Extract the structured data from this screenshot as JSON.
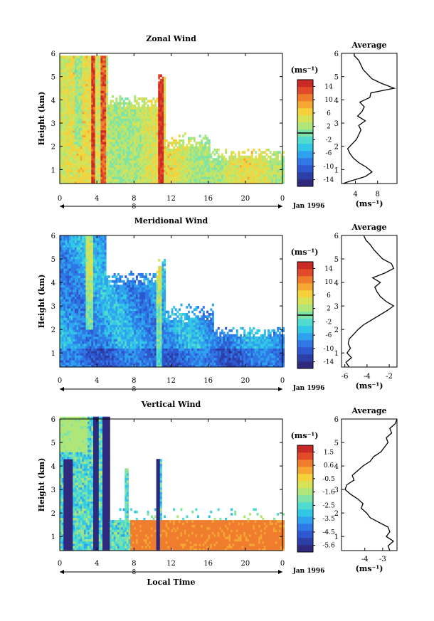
{
  "figure": {
    "xlabel": "Local Time",
    "date_label": "Jan 1996",
    "day_label": "8",
    "colorbar_unit": "(ms⁻¹)",
    "avg_unit": "(ms⁻¹)",
    "height_label": "Height (km)"
  },
  "chart_data": [
    {
      "type": "heatmap",
      "title": "Zonal Wind",
      "xlabel": "",
      "ylabel": "Height (km)",
      "xlim": [
        0,
        24
      ],
      "ylim": [
        0.4,
        6
      ],
      "xticks": [
        "0",
        "4",
        "8",
        "12",
        "16",
        "20",
        "0"
      ],
      "yticks": [
        "1",
        "2",
        "3",
        "4",
        "5",
        "6"
      ],
      "colorbar": {
        "min": -16,
        "max": 16,
        "ticks": [
          "14",
          "10",
          "6",
          "2",
          "-2",
          "-6",
          "-10",
          "-14"
        ],
        "contour": 0
      },
      "profile": {
        "title": "Average",
        "xlim": [
          1.5,
          11.5
        ],
        "xticks": [
          "4",
          "8"
        ],
        "xtick_values": [
          4,
          8
        ],
        "heights": [
          0.4,
          0.5,
          0.7,
          0.9,
          1.1,
          1.3,
          1.5,
          1.7,
          1.9,
          2.1,
          2.3,
          2.5,
          2.7,
          2.9,
          3.1,
          3.3,
          3.5,
          3.7,
          3.9,
          4.1,
          4.3,
          4.5,
          4.7,
          4.9,
          5.1,
          5.3,
          5.5,
          5.7,
          5.9,
          6.0
        ],
        "values": [
          1.8,
          3.0,
          5.8,
          7.0,
          6.0,
          4.6,
          3.6,
          3.0,
          2.6,
          3.4,
          4.2,
          4.6,
          5.0,
          4.6,
          5.8,
          4.4,
          5.2,
          5.6,
          4.8,
          6.6,
          6.8,
          11.0,
          8.8,
          7.0,
          6.2,
          5.4,
          5.0,
          4.6,
          3.8,
          3.8
        ]
      }
    },
    {
      "type": "heatmap",
      "title": "Meridional Wind",
      "xlabel": "",
      "ylabel": "Height (km)",
      "xlim": [
        0,
        24
      ],
      "ylim": [
        0.4,
        6
      ],
      "xticks": [
        "0",
        "4",
        "8",
        "12",
        "16",
        "20",
        "0"
      ],
      "yticks": [
        "1",
        "2",
        "3",
        "4",
        "5",
        "6"
      ],
      "colorbar": {
        "min": -16,
        "max": 16,
        "ticks": [
          "14",
          "10",
          "6",
          "2",
          "-2",
          "-6",
          "-10",
          "-14"
        ],
        "contour": 0
      },
      "profile": {
        "title": "Average",
        "xlim": [
          -6.3,
          -1.3
        ],
        "xticks": [
          "-6",
          "-4",
          "-2"
        ],
        "xtick_values": [
          -6,
          -4,
          -2
        ],
        "heights": [
          0.4,
          0.6,
          0.8,
          1.0,
          1.2,
          1.4,
          1.6,
          1.8,
          2.0,
          2.2,
          2.4,
          2.6,
          2.8,
          3.0,
          3.2,
          3.4,
          3.6,
          3.8,
          4.0,
          4.2,
          4.4,
          4.6,
          4.8,
          5.0,
          5.2,
          5.4,
          5.6,
          5.8,
          6.0
        ],
        "values": [
          -5.6,
          -5.9,
          -5.4,
          -5.8,
          -5.5,
          -5.7,
          -5.6,
          -5.2,
          -4.8,
          -4.3,
          -3.6,
          -2.9,
          -2.2,
          -1.6,
          -2.3,
          -2.8,
          -3.1,
          -3.3,
          -2.8,
          -3.5,
          -2.4,
          -1.6,
          -1.8,
          -2.6,
          -3.0,
          -3.4,
          -3.7,
          -4.1,
          -4.3
        ]
      }
    },
    {
      "type": "heatmap",
      "title": "Vertical Wind",
      "xlabel": "Local Time",
      "ylabel": "Height (km)",
      "xlim": [
        0,
        24
      ],
      "ylim": [
        0.4,
        6
      ],
      "xticks": [
        "0",
        "4",
        "8",
        "12",
        "16",
        "20",
        "0"
      ],
      "yticks": [
        "1",
        "2",
        "3",
        "4",
        "5",
        "6"
      ],
      "colorbar": {
        "min": -6.0,
        "max": 2.0,
        "ticks": [
          "1.5",
          "0.6",
          "-0.5",
          "-1.6",
          "-2.5",
          "-3.5",
          "-4.5",
          "-5.6"
        ]
      },
      "profile": {
        "title": "Average",
        "xlim": [
          -5.3,
          -2.2
        ],
        "xticks": [
          "-4",
          "-3"
        ],
        "xtick_values": [
          -4,
          -3
        ],
        "heights": [
          0.4,
          0.6,
          0.8,
          1.0,
          1.2,
          1.4,
          1.6,
          1.8,
          2.0,
          2.2,
          2.4,
          2.6,
          2.8,
          3.0,
          3.2,
          3.4,
          3.6,
          3.8,
          4.0,
          4.2,
          4.4,
          4.6,
          4.8,
          5.0,
          5.2,
          5.4,
          5.6,
          5.8,
          6.0
        ],
        "values": [
          -2.6,
          -2.7,
          -2.4,
          -2.8,
          -2.6,
          -2.7,
          -3.2,
          -3.7,
          -3.9,
          -4.2,
          -4.1,
          -4.4,
          -4.8,
          -5.1,
          -5.0,
          -4.6,
          -4.7,
          -4.4,
          -4.1,
          -3.7,
          -3.5,
          -3.1,
          -2.9,
          -2.7,
          -2.8,
          -2.5,
          -2.6,
          -2.3,
          -2.2
        ]
      }
    }
  ]
}
